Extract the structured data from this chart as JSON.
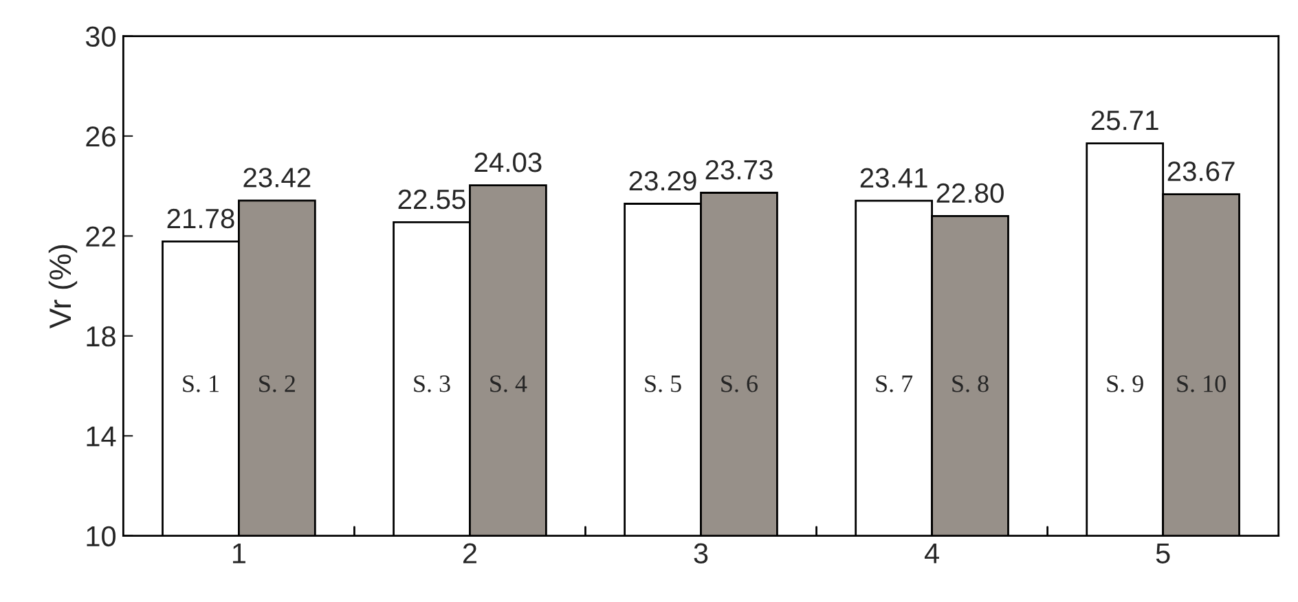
{
  "chart_data": {
    "type": "bar",
    "ylabel": "Vr (%)",
    "categories": [
      "1",
      "2",
      "3",
      "4",
      "5"
    ],
    "series": [
      {
        "color": "#ffffff",
        "values": [
          21.78,
          22.55,
          23.29,
          23.41,
          25.71
        ],
        "value_labels": [
          "21.78",
          "22.55",
          "23.29",
          "23.41",
          "25.71"
        ]
      },
      {
        "color": "#979089",
        "values": [
          23.42,
          24.03,
          23.73,
          22.8,
          23.67
        ],
        "value_labels": [
          "23.42",
          "24.03",
          "23.73",
          "22.80",
          "23.67"
        ]
      }
    ],
    "ylim": [
      10,
      30
    ],
    "yticks": [
      10,
      14,
      18,
      22,
      26,
      30
    ],
    "grid": false,
    "legend": false,
    "annotations": [
      {
        "text": "S. 1",
        "x": "1",
        "y": 16
      },
      {
        "text": "S. 2",
        "x": "1",
        "y": 16
      },
      {
        "text": "S. 3",
        "x": "2",
        "y": 16
      },
      {
        "text": "S. 4",
        "x": "2",
        "y": 16
      },
      {
        "text": "S. 5",
        "x": "3",
        "y": 16
      },
      {
        "text": "S. 6",
        "x": "3",
        "y": 16
      },
      {
        "text": "S. 7",
        "x": "4",
        "y": 16
      },
      {
        "text": "S. 8",
        "x": "4",
        "y": 16
      },
      {
        "text": "S. 9",
        "x": "5",
        "y": 16
      },
      {
        "text": "S. 10",
        "x": "5",
        "y": 16
      }
    ]
  }
}
